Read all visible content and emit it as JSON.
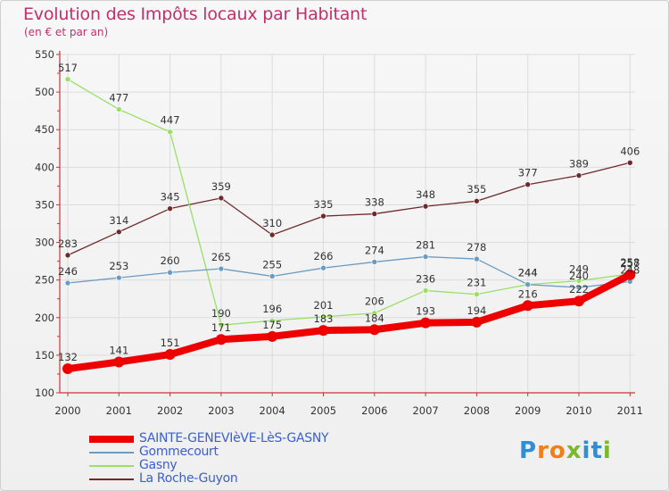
{
  "title": "Evolution des Impôts locaux par Habitant",
  "subtitle": "(en € et par an)",
  "logo": {
    "text": "Proxiti",
    "letters": [
      "P",
      "r",
      "o",
      "x",
      "i",
      "t",
      "i"
    ],
    "colors": [
      "#2e8fd8",
      "#f07f1a",
      "#f07f1a",
      "#7ab82c",
      "#2e8fd8",
      "#2e8fd8",
      "#7ab82c"
    ]
  },
  "chart_data": {
    "type": "line",
    "title": "Evolution des Impôts locaux par Habitant",
    "ylabel": "(en € et par an)",
    "xlabel": "",
    "categories": [
      "2000",
      "2001",
      "2002",
      "2003",
      "2004",
      "2005",
      "2006",
      "2007",
      "2008",
      "2009",
      "2010",
      "2011"
    ],
    "ylim": [
      100,
      550
    ],
    "yticks": [
      100,
      150,
      200,
      250,
      300,
      350,
      400,
      450,
      500,
      550
    ],
    "grid": true,
    "legend_position": "bottom-left",
    "series": [
      {
        "name": "SAINTE-GENEVIèVE-LèS-GASNY",
        "color": "#ee0000",
        "values": [
          132,
          141,
          151,
          171,
          175,
          183,
          184,
          193,
          194,
          216,
          222,
          257
        ]
      },
      {
        "name": "Gommecourt",
        "color": "#6a9bc3",
        "values": [
          246,
          253,
          260,
          265,
          255,
          266,
          274,
          281,
          278,
          244,
          240,
          248
        ]
      },
      {
        "name": "Gasny",
        "color": "#99e066",
        "values": [
          517,
          477,
          447,
          190,
          196,
          201,
          206,
          236,
          231,
          244,
          249,
          258
        ]
      },
      {
        "name": "La Roche-Guyon",
        "color": "#6e2a2a",
        "values": [
          283,
          314,
          345,
          359,
          310,
          335,
          338,
          348,
          355,
          377,
          389,
          406
        ]
      }
    ]
  }
}
